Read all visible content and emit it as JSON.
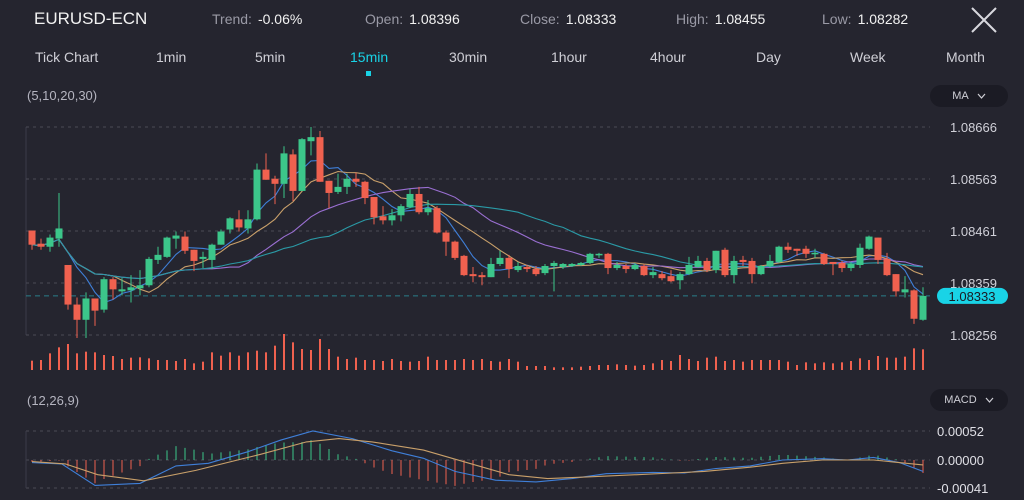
{
  "header": {
    "symbol": "EURUSD-ECN",
    "trend_label": "Trend:",
    "trend_value": "-0.06%",
    "open_label": "Open:",
    "open_value": "1.08396",
    "close_label": "Close:",
    "close_value": "1.08333",
    "high_label": "High:",
    "high_value": "1.08455",
    "low_label": "Low:",
    "low_value": "1.08282",
    "close_icon": "close-x-icon"
  },
  "timeframes": [
    {
      "label": "Tick Chart"
    },
    {
      "label": "1min"
    },
    {
      "label": "5min"
    },
    {
      "label": "15min",
      "active": true
    },
    {
      "label": "30min"
    },
    {
      "label": "1hour"
    },
    {
      "label": "4hour"
    },
    {
      "label": "Day"
    },
    {
      "label": "Week"
    },
    {
      "label": "Month"
    }
  ],
  "main_panel": {
    "params": "(5,10,20,30)",
    "indicator": "MA",
    "dropdown_icon": "chevron-down-icon"
  },
  "macd_panel": {
    "params": "(12,26,9)",
    "indicator": "MACD",
    "dropdown_icon": "chevron-down-icon"
  },
  "colors": {
    "up": "#3cc68a",
    "down": "#f0614f",
    "accent": "#19d3e6",
    "ma5": "#3f7fd8",
    "ma10": "#c9a06a",
    "ma20": "#9a6fd2",
    "ma30": "#2a9aa6",
    "dif": "#3f7fd8",
    "dea": "#c9a06a"
  },
  "chart_data": {
    "type": "candlestick",
    "price_ticks": [
      "1.08666",
      "1.08563",
      "1.08461",
      "1.08359",
      "1.08256"
    ],
    "price_range": [
      1.08256,
      1.08666
    ],
    "current_price": "1.08333",
    "moving_averages": [
      5,
      10,
      20,
      30
    ],
    "candles_ohlc": [
      [
        1.08462,
        1.08462,
        1.08424,
        1.08434
      ],
      [
        1.08436,
        1.08446,
        1.08424,
        1.0843
      ],
      [
        1.0843,
        1.08454,
        1.0842,
        1.08448
      ],
      [
        1.08446,
        1.08536,
        1.0843,
        1.08466
      ],
      [
        1.08394,
        1.08394,
        1.08306,
        1.08316
      ],
      [
        1.08316,
        1.0833,
        1.0825,
        1.08286
      ],
      [
        1.08286,
        1.0834,
        1.0825,
        1.08328
      ],
      [
        1.08328,
        1.08328,
        1.08274,
        1.08304
      ],
      [
        1.08306,
        1.0837,
        1.083,
        1.08366
      ],
      [
        1.08366,
        1.0837,
        1.08326,
        1.08346
      ],
      [
        1.08342,
        1.08368,
        1.08334,
        1.08346
      ],
      [
        1.08344,
        1.08374,
        1.0832,
        1.0835
      ],
      [
        1.08348,
        1.08384,
        1.08334,
        1.08354
      ],
      [
        1.08354,
        1.0841,
        1.0835,
        1.08406
      ],
      [
        1.08404,
        1.0843,
        1.08396,
        1.08414
      ],
      [
        1.0841,
        1.0845,
        1.08408,
        1.08448
      ],
      [
        1.08446,
        1.0846,
        1.08426,
        1.08452
      ],
      [
        1.0845,
        1.0846,
        1.08416,
        1.08422
      ],
      [
        1.08424,
        1.08424,
        1.08382,
        1.08402
      ],
      [
        1.08406,
        1.0842,
        1.08388,
        1.0841
      ],
      [
        1.08404,
        1.08436,
        1.08386,
        1.08434
      ],
      [
        1.08434,
        1.08464,
        1.08434,
        1.0846
      ],
      [
        1.08464,
        1.08488,
        1.08456,
        1.08486
      ],
      [
        1.08484,
        1.08502,
        1.0846,
        1.08468
      ],
      [
        1.08466,
        1.08502,
        1.08456,
        1.08484
      ],
      [
        1.08484,
        1.08594,
        1.08482,
        1.08582
      ],
      [
        1.08582,
        1.08614,
        1.08562,
        1.08562
      ],
      [
        1.08564,
        1.0857,
        1.08514,
        1.08554
      ],
      [
        1.08554,
        1.08628,
        1.08526,
        1.08614
      ],
      [
        1.08612,
        1.08622,
        1.0852,
        1.0854
      ],
      [
        1.0854,
        1.08644,
        1.0854,
        1.08642
      ],
      [
        1.08638,
        1.08666,
        1.0861,
        1.08646
      ],
      [
        1.08646,
        1.08658,
        1.08558,
        1.08558
      ],
      [
        1.0856,
        1.0856,
        1.08506,
        1.08536
      ],
      [
        1.08538,
        1.08574,
        1.08534,
        1.08548
      ],
      [
        1.08548,
        1.08574,
        1.08534,
        1.08564
      ],
      [
        1.08564,
        1.08576,
        1.08548,
        1.08558
      ],
      [
        1.08558,
        1.0856,
        1.08514,
        1.08526
      ],
      [
        1.08528,
        1.08528,
        1.08474,
        1.08488
      ],
      [
        1.0849,
        1.0851,
        1.08474,
        1.08482
      ],
      [
        1.08482,
        1.08504,
        1.08472,
        1.08492
      ],
      [
        1.08492,
        1.08514,
        1.0848,
        1.0851
      ],
      [
        1.08508,
        1.08544,
        1.08506,
        1.08534
      ],
      [
        1.08534,
        1.08548,
        1.08494,
        1.08498
      ],
      [
        1.08498,
        1.08522,
        1.08492,
        1.08506
      ],
      [
        1.08506,
        1.0851,
        1.08456,
        1.08458
      ],
      [
        1.08458,
        1.08462,
        1.08412,
        1.0844
      ],
      [
        1.0844,
        1.08442,
        1.08404,
        1.08408
      ],
      [
        1.08412,
        1.08414,
        1.08372,
        1.08374
      ],
      [
        1.08376,
        1.0839,
        1.0836,
        1.08372
      ],
      [
        1.08374,
        1.0838,
        1.08354,
        1.0837
      ],
      [
        1.0837,
        1.08408,
        1.0837,
        1.08396
      ],
      [
        1.08396,
        1.08422,
        1.08392,
        1.08408
      ],
      [
        1.08408,
        1.08414,
        1.08368,
        1.08386
      ],
      [
        1.08384,
        1.084,
        1.0838,
        1.08392
      ],
      [
        1.0839,
        1.08394,
        1.0838,
        1.08386
      ],
      [
        1.08386,
        1.08392,
        1.08372,
        1.08376
      ],
      [
        1.08378,
        1.08396,
        1.08374,
        1.08392
      ],
      [
        1.08392,
        1.08402,
        1.08342,
        1.08398
      ],
      [
        1.0839,
        1.08398,
        1.08386,
        1.08396
      ],
      [
        1.08392,
        1.08398,
        1.0839,
        1.08396
      ],
      [
        1.08394,
        1.084,
        1.08392,
        1.08398
      ],
      [
        1.08398,
        1.08418,
        1.08396,
        1.08416
      ],
      [
        1.08414,
        1.08418,
        1.08408,
        1.08416
      ],
      [
        1.08416,
        1.08418,
        1.08376,
        1.08388
      ],
      [
        1.08388,
        1.084,
        1.08384,
        1.08394
      ],
      [
        1.08392,
        1.08396,
        1.08378,
        1.08386
      ],
      [
        1.08386,
        1.08398,
        1.08384,
        1.08394
      ],
      [
        1.08392,
        1.08396,
        1.08372,
        1.08374
      ],
      [
        1.08374,
        1.0839,
        1.08368,
        1.0838
      ],
      [
        1.08376,
        1.08382,
        1.08364,
        1.08368
      ],
      [
        1.08372,
        1.08384,
        1.0836,
        1.08362
      ],
      [
        1.08364,
        1.0838,
        1.08346,
        1.08376
      ],
      [
        1.08376,
        1.0841,
        1.08374,
        1.08394
      ],
      [
        1.0839,
        1.08412,
        1.08388,
        1.08402
      ],
      [
        1.08402,
        1.08408,
        1.0838,
        1.08384
      ],
      [
        1.08384,
        1.08422,
        1.08378,
        1.08422
      ],
      [
        1.08424,
        1.08428,
        1.0837,
        1.08374
      ],
      [
        1.08374,
        1.08412,
        1.08358,
        1.08402
      ],
      [
        1.08404,
        1.08412,
        1.08392,
        1.084
      ],
      [
        1.08402,
        1.08408,
        1.08358,
        1.08376
      ],
      [
        1.08376,
        1.08394,
        1.08374,
        1.08392
      ],
      [
        1.08392,
        1.08414,
        1.08388,
        1.08402
      ],
      [
        1.084,
        1.08432,
        1.08398,
        1.0843
      ],
      [
        1.0843,
        1.08438,
        1.08418,
        1.08424
      ],
      [
        1.08426,
        1.08426,
        1.08412,
        1.08422
      ],
      [
        1.08426,
        1.08432,
        1.08408,
        1.08416
      ],
      [
        1.08416,
        1.08426,
        1.08408,
        1.08418
      ],
      [
        1.08416,
        1.08418,
        1.08394,
        1.08396
      ],
      [
        1.084,
        1.084,
        1.08374,
        1.08396
      ],
      [
        1.08398,
        1.08402,
        1.0838,
        1.08388
      ],
      [
        1.08388,
        1.084,
        1.08382,
        1.08396
      ],
      [
        1.08394,
        1.08436,
        1.08388,
        1.08428
      ],
      [
        1.08426,
        1.08452,
        1.08424,
        1.0845
      ],
      [
        1.08448,
        1.08448,
        1.08396,
        1.08404
      ],
      [
        1.08406,
        1.08418,
        1.08372,
        1.08374
      ],
      [
        1.08376,
        1.08376,
        1.08332,
        1.08342
      ],
      [
        1.0834,
        1.08372,
        1.0833,
        1.08346
      ],
      [
        1.08344,
        1.08346,
        1.08278,
        1.08288
      ],
      [
        1.08286,
        1.0835,
        1.08284,
        1.08333
      ]
    ],
    "volume": [
      28,
      30,
      50,
      68,
      78,
      50,
      55,
      53,
      45,
      42,
      33,
      37,
      38,
      35,
      30,
      30,
      27,
      33,
      20,
      25,
      53,
      43,
      53,
      43,
      53,
      58,
      53,
      73,
      108,
      83,
      63,
      60,
      93,
      63,
      40,
      33,
      37,
      30,
      30,
      27,
      33,
      27,
      25,
      27,
      40,
      30,
      30,
      30,
      33,
      30,
      33,
      27,
      25,
      33,
      25,
      12,
      12,
      12,
      8,
      8,
      8,
      10,
      12,
      15,
      15,
      17,
      15,
      13,
      15,
      20,
      30,
      27,
      45,
      33,
      27,
      37,
      40,
      27,
      30,
      25,
      30,
      30,
      30,
      30,
      25,
      15,
      23,
      20,
      23,
      20,
      23,
      27,
      35,
      30,
      42,
      37,
      37,
      40,
      65,
      62
    ],
    "macd": {
      "ticks": [
        "0.00052",
        "0.00000",
        "-0.00041"
      ],
      "range": [
        -0.00041,
        0.00052
      ],
      "dif": [
        [
          1,
          -3.8
        ],
        [
          4.3,
          -5.7
        ],
        [
          8,
          -37.2
        ],
        [
          13,
          -34.3
        ],
        [
          17,
          -8.6
        ],
        [
          20.6,
          -4.8
        ],
        [
          25,
          14.8
        ],
        [
          28.6,
          35.5
        ],
        [
          32.2,
          52
        ],
        [
          36.6,
          38.4
        ],
        [
          41,
          16.5
        ],
        [
          44.5,
          3
        ],
        [
          48,
          -16.7
        ],
        [
          52.5,
          -29.6
        ],
        [
          57,
          -32
        ],
        [
          61,
          -27.2
        ],
        [
          64.8,
          -20
        ],
        [
          70,
          -18.1
        ],
        [
          73.5,
          -19.1
        ],
        [
          77,
          -12.4
        ],
        [
          80.8,
          -8.6
        ],
        [
          84.4,
          0
        ],
        [
          88.8,
          2.4
        ],
        [
          91.6,
          0
        ],
        [
          94.5,
          4.7
        ],
        [
          97.4,
          -3.8
        ],
        [
          100,
          -16.7
        ]
      ],
      "dea": [
        [
          1,
          -2.4
        ],
        [
          4.7,
          -5.7
        ],
        [
          8.3,
          -21.5
        ],
        [
          13.4,
          -30.5
        ],
        [
          19.2,
          -15.3
        ],
        [
          26.4,
          10.3
        ],
        [
          31.5,
          32.5
        ],
        [
          35.1,
          38.4
        ],
        [
          38.8,
          32.5
        ],
        [
          44.5,
          17.7
        ],
        [
          49.6,
          -4.8
        ],
        [
          54,
          -21.5
        ],
        [
          58.3,
          -27.2
        ],
        [
          62.7,
          -24.8
        ],
        [
          69.9,
          -20.5
        ],
        [
          75.7,
          -16.7
        ],
        [
          80.8,
          -10.5
        ],
        [
          84.4,
          -4.8
        ],
        [
          88.8,
          0
        ],
        [
          94.5,
          0
        ],
        [
          100,
          -7.2
        ]
      ],
      "value_unit": 1e-05
    }
  }
}
